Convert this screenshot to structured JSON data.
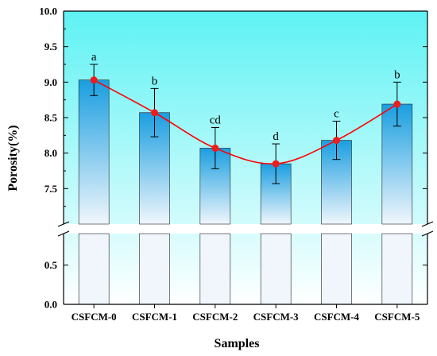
{
  "chart_data": {
    "type": "bar",
    "xlabel": "Samples",
    "ylabel": "Porosity(%)",
    "categories": [
      "CSFCM-0",
      "CSFCM-1",
      "CSFCM-2",
      "CSFCM-3",
      "CSFCM-4",
      "CSFCM-5"
    ],
    "values": [
      9.03,
      8.57,
      8.07,
      7.85,
      8.18,
      8.69
    ],
    "error": [
      0.22,
      0.34,
      0.29,
      0.28,
      0.27,
      0.31
    ],
    "significance": [
      "a",
      "b",
      "cd",
      "d",
      "c",
      "b"
    ],
    "ylim": [
      0,
      10
    ],
    "axis_break": {
      "lower": [
        0,
        0.9
      ],
      "upper": [
        7.0,
        10.0
      ]
    },
    "lower_ticks": [
      "0.0",
      "0.5"
    ],
    "upper_ticks": [
      "7.5",
      "8.0",
      "8.5",
      "9.0",
      "9.5",
      "10.0"
    ],
    "lower_tick_values": [
      0,
      0.5
    ],
    "upper_tick_values": [
      7.5,
      8.0,
      8.5,
      9.0,
      9.5,
      10.0
    ],
    "grid": false,
    "line_overlay": true,
    "colors": {
      "bar_top": "#1a9ee0",
      "bar_bottom": "#f0f6fc",
      "bg_top": "#5ef2f4",
      "bg_bottom": "#ffffff",
      "line": "#ff0000",
      "marker": "#ee1c1c"
    }
  }
}
